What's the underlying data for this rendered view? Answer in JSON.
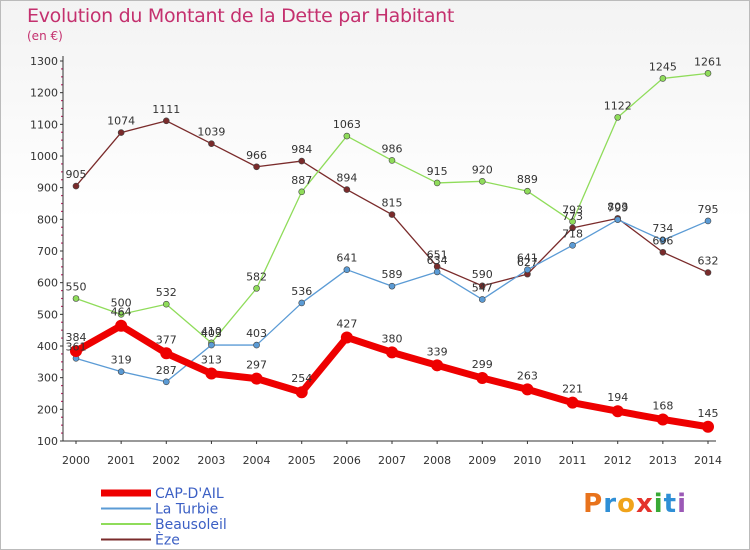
{
  "header": {
    "title": "Evolution du Montant de la Dette par Habitant",
    "unit": "(en €)"
  },
  "logo": {
    "text": "Proxiti",
    "colors": [
      "#e8731c",
      "#2f8fd6",
      "#f0a31b",
      "#e4322b",
      "#39a935",
      "#2f8fd6",
      "#9b59b6"
    ]
  },
  "chart_data": {
    "type": "line",
    "title": "Evolution du Montant de la Dette par Habitant",
    "ylabel": "(en €)",
    "xlabel": "",
    "x": [
      2000,
      2001,
      2002,
      2003,
      2004,
      2005,
      2006,
      2007,
      2008,
      2009,
      2010,
      2011,
      2012,
      2013,
      2014
    ],
    "ylim": [
      100,
      1300
    ],
    "yticks": [
      100,
      200,
      300,
      400,
      500,
      600,
      700,
      800,
      900,
      1000,
      1100,
      1200,
      1300
    ],
    "grid": false,
    "legend": "bottom-left",
    "series": [
      {
        "name": "CAP-D'AIL",
        "color": "#ee0000",
        "width": 7,
        "values": [
          384,
          464,
          377,
          313,
          297,
          254,
          427,
          380,
          339,
          299,
          263,
          221,
          194,
          168,
          145
        ]
      },
      {
        "name": "La Turbie",
        "color": "#5b9bd5",
        "width": 1.3,
        "values": [
          361,
          319,
          287,
          403,
          403,
          536,
          641,
          589,
          634,
          547,
          641,
          718,
          799,
          734,
          795
        ]
      },
      {
        "name": "Beausoleil",
        "color": "#8fdc5a",
        "width": 1.3,
        "values": [
          550,
          500,
          532,
          410,
          582,
          887,
          1063,
          986,
          915,
          920,
          889,
          793,
          1122,
          1245,
          1261
        ]
      },
      {
        "name": "Èze",
        "color": "#7a2b2b",
        "width": 1.3,
        "values": [
          905,
          1074,
          1111,
          1039,
          966,
          984,
          894,
          815,
          651,
          590,
          627,
          773,
          803,
          696,
          632
        ]
      }
    ]
  }
}
